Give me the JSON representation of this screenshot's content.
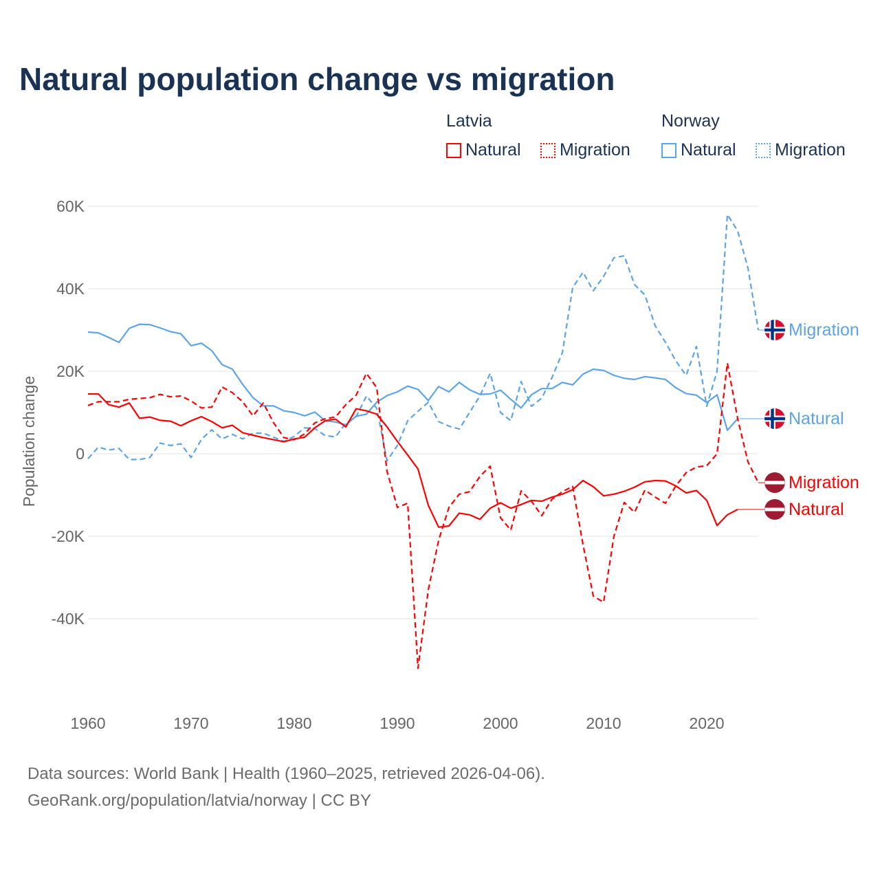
{
  "title": "Natural population change vs migration",
  "legend": {
    "groups": [
      {
        "country": "Latvia",
        "items": [
          {
            "label": "Natural",
            "style": "solid"
          },
          {
            "label": "Migration",
            "style": "dotted"
          }
        ],
        "color": "#ff0000"
      },
      {
        "country": "Norway",
        "items": [
          {
            "label": "Natural",
            "style": "solid"
          },
          {
            "label": "Migration",
            "style": "dotted"
          }
        ],
        "color": "#5ba4ea"
      }
    ]
  },
  "footer": {
    "line1": "Data sources: World Bank | Health (1960–2025, retrieved 2026-04-06).",
    "line2": "GeoRank.org/population/latvia/norway | CC BY"
  },
  "chart_data": {
    "type": "line",
    "title": "Natural population change vs migration",
    "xlabel": "",
    "ylabel": "Population change",
    "xlim": [
      1960,
      2025
    ],
    "ylim": [
      -60000,
      60000
    ],
    "x_ticks": [
      1960,
      1970,
      1980,
      1990,
      2000,
      2010,
      2020
    ],
    "y_ticks": [
      {
        "v": 60000,
        "label": "60K"
      },
      {
        "v": 40000,
        "label": "40K"
      },
      {
        "v": 20000,
        "label": "20K"
      },
      {
        "v": 0,
        "label": "0"
      },
      {
        "v": -20000,
        "label": "-20K"
      },
      {
        "v": -40000,
        "label": "-40K"
      }
    ],
    "grid": true,
    "legend_position": "top-right",
    "start_year": 1960,
    "series": [
      {
        "name": "Norway Migration",
        "end_label": "Migration",
        "country": "Norway",
        "color": "#5ba4ea",
        "dash": true,
        "values": [
          -1.2,
          1.6,
          0.9,
          1.3,
          -1.4,
          -1.4,
          -0.9,
          2.6,
          2,
          2.4,
          -0.9,
          3.5,
          5.8,
          3.6,
          4.7,
          3.6,
          5,
          5,
          4,
          3,
          4.2,
          6.3,
          6.1,
          4.4,
          4.1,
          7.4,
          9,
          14,
          11,
          -1.7,
          2,
          8,
          10.3,
          12.5,
          7.8,
          6.7,
          6,
          10,
          14,
          19.5,
          10,
          8,
          17.5,
          11.5,
          13.5,
          18.5,
          24.5,
          40.3,
          44,
          39.5,
          43,
          47.5,
          48,
          41,
          38.5,
          31,
          27,
          22.5,
          19,
          26,
          11.5,
          20,
          58,
          54,
          45,
          30
        ]
      },
      {
        "name": "Norway Natural",
        "end_label": "Natural",
        "country": "Norway",
        "color": "#5ba4ea",
        "dash": false,
        "values": [
          29.5,
          29.3,
          28.2,
          27,
          30.4,
          31.4,
          31.3,
          30.5,
          29.6,
          29.1,
          26.2,
          26.8,
          25,
          21.6,
          20.5,
          16.8,
          13.6,
          11.6,
          11.6,
          10.4,
          10,
          9.2,
          10.1,
          8,
          7.7,
          7,
          9.1,
          9.6,
          12.5,
          14.1,
          15,
          16.4,
          15.6,
          12.9,
          16.3,
          15,
          17.3,
          15.5,
          14.4,
          14.5,
          15.4,
          13.2,
          11.1,
          14.3,
          15.8,
          15.8,
          17.3,
          16.7,
          19.3,
          20.5,
          20.2,
          19,
          18.3,
          18,
          18.7,
          18.4,
          18,
          16,
          14.6,
          14.2,
          12.4,
          14.3,
          5.7,
          8.5
        ]
      },
      {
        "name": "Latvia Migration",
        "end_label": "Migration",
        "country": "Latvia",
        "color": "#ff0000",
        "dash": true,
        "values": [
          11.7,
          12.6,
          12.6,
          12.6,
          13.2,
          13.4,
          13.6,
          14.4,
          13.8,
          14,
          12.8,
          11.1,
          11.3,
          16.2,
          14.8,
          12.6,
          9.2,
          12.3,
          7.5,
          3.9,
          3.4,
          4.8,
          7.5,
          8.5,
          8.9,
          11.9,
          14.2,
          19.5,
          16,
          -4.3,
          -13,
          -12,
          -52,
          -33,
          -21,
          -13,
          -9.8,
          -9.2,
          -5.5,
          -3,
          -15.5,
          -18.5,
          -9,
          -11.5,
          -15,
          -11,
          -9.2,
          -7.9,
          -22,
          -34.5,
          -36,
          -20,
          -11.8,
          -14.2,
          -8.8,
          -10.5,
          -12,
          -7.8,
          -4.6,
          -3.2,
          -2.9,
          0,
          22,
          8.5,
          -2,
          -7
        ]
      },
      {
        "name": "Latvia Natural",
        "end_label": "Natural",
        "country": "Latvia",
        "color": "#ff0000",
        "dash": false,
        "values": [
          14.5,
          14.5,
          11.9,
          11.3,
          12.3,
          8.6,
          8.9,
          8.1,
          7.9,
          6.8,
          8,
          9,
          7.8,
          6.3,
          6.9,
          5.1,
          4.5,
          3.9,
          3.4,
          2.9,
          3.6,
          4,
          6.3,
          8,
          8.4,
          6.5,
          10.9,
          10.4,
          9.6,
          6.5,
          3,
          -0.3,
          -3.7,
          -12.5,
          -17.8,
          -17.5,
          -14.4,
          -14.8,
          -15.9,
          -13.2,
          -11.9,
          -13.2,
          -12.3,
          -11.3,
          -11.5,
          -10.5,
          -9.8,
          -8.7,
          -6.5,
          -8,
          -10.2,
          -9.8,
          -9.1,
          -8.1,
          -6.8,
          -6.5,
          -6.6,
          -7.8,
          -9.5,
          -8.9,
          -11.3,
          -17.4,
          -14.8,
          -13.5
        ]
      }
    ],
    "value_unit": "thousands"
  }
}
